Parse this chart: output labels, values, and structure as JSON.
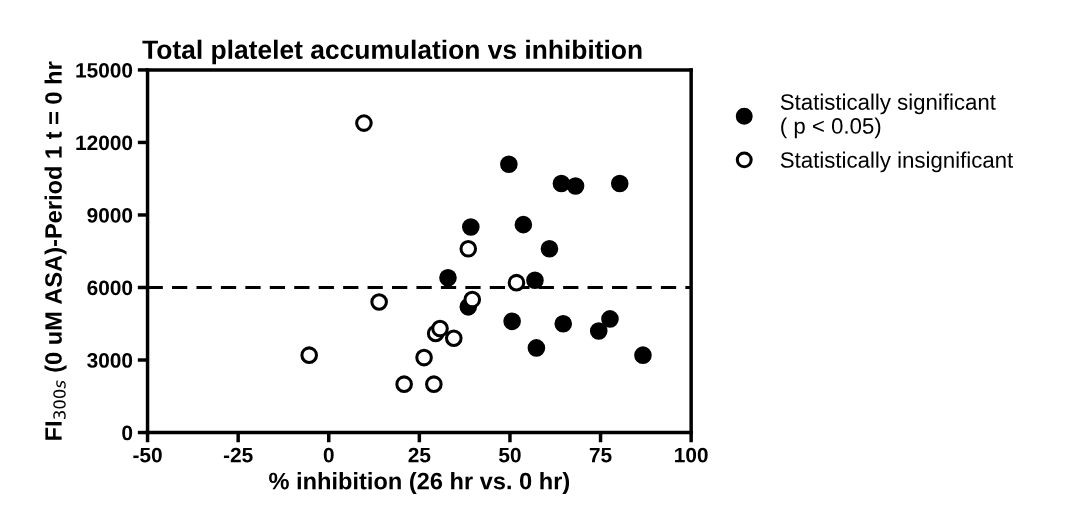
{
  "chart_data": {
    "type": "scatter",
    "title": "Total platelet accumulation vs inhibition",
    "xlabel": "% inhibition (26 hr vs. 0 hr)",
    "ylabel": "FI$_{300s}$ (0 uM ASA)-Period 1 t = 0 hr",
    "xlim": [
      -50,
      100
    ],
    "xticks": [
      -50,
      -25,
      0,
      25,
      50,
      75,
      100
    ],
    "ylim": [
      0,
      15000
    ],
    "yticks": [
      0,
      3000,
      6000,
      9000,
      12000,
      15000
    ],
    "grid": false,
    "legend": "right",
    "marker": "circle",
    "ref_lines": [
      {
        "axis": "y",
        "value": 6000,
        "line_style": "dashed",
        "color": "#000000"
      }
    ],
    "series": [
      {
        "name": "Statistically significant\n( p < 0.05)",
        "color": "#000000",
        "x": [
          32.9,
          39.2,
          38.5,
          49.7,
          50.6,
          53.7,
          56.9,
          57.3,
          60.9,
          64.2,
          68.1,
          64.7,
          80.3,
          74.5,
          77.6,
          86.7
        ],
        "values": [
          6400,
          8500,
          5200,
          11100,
          4600,
          8600,
          6300,
          3500,
          7600,
          10300,
          10200,
          4500,
          10300,
          4200,
          4700,
          3200
        ]
      },
      {
        "name": "Statistically insignificant",
        "color": "#000000",
        "x": [
          9.7,
          13.9,
          -5.4,
          29.5,
          30.7,
          26.3,
          20.8,
          29.0,
          34.5,
          38.5,
          39.6,
          51.8
        ],
        "values": [
          12800,
          5400,
          3200,
          4100,
          4300,
          3100,
          2000,
          2000,
          3900,
          7600,
          5500,
          6200
        ]
      }
    ]
  }
}
